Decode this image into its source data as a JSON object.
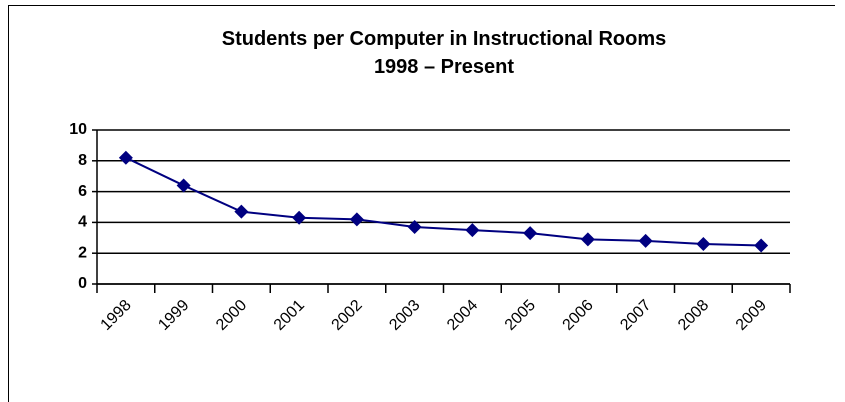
{
  "chart_data": {
    "type": "line",
    "title": "Students per Computer in Instructional Rooms",
    "subtitle": "1998 – Present",
    "categories": [
      "1998",
      "1999",
      "2000",
      "2001",
      "2002",
      "2003",
      "2004",
      "2005",
      "2006",
      "2007",
      "2008",
      "2009"
    ],
    "values": [
      8.2,
      6.4,
      4.7,
      4.3,
      4.2,
      3.7,
      3.5,
      3.3,
      2.9,
      2.8,
      2.6,
      2.5
    ],
    "color": "#000080",
    "ylim": [
      0,
      10
    ],
    "yticks": [
      0,
      2,
      4,
      6,
      8,
      10
    ],
    "grid": true
  }
}
